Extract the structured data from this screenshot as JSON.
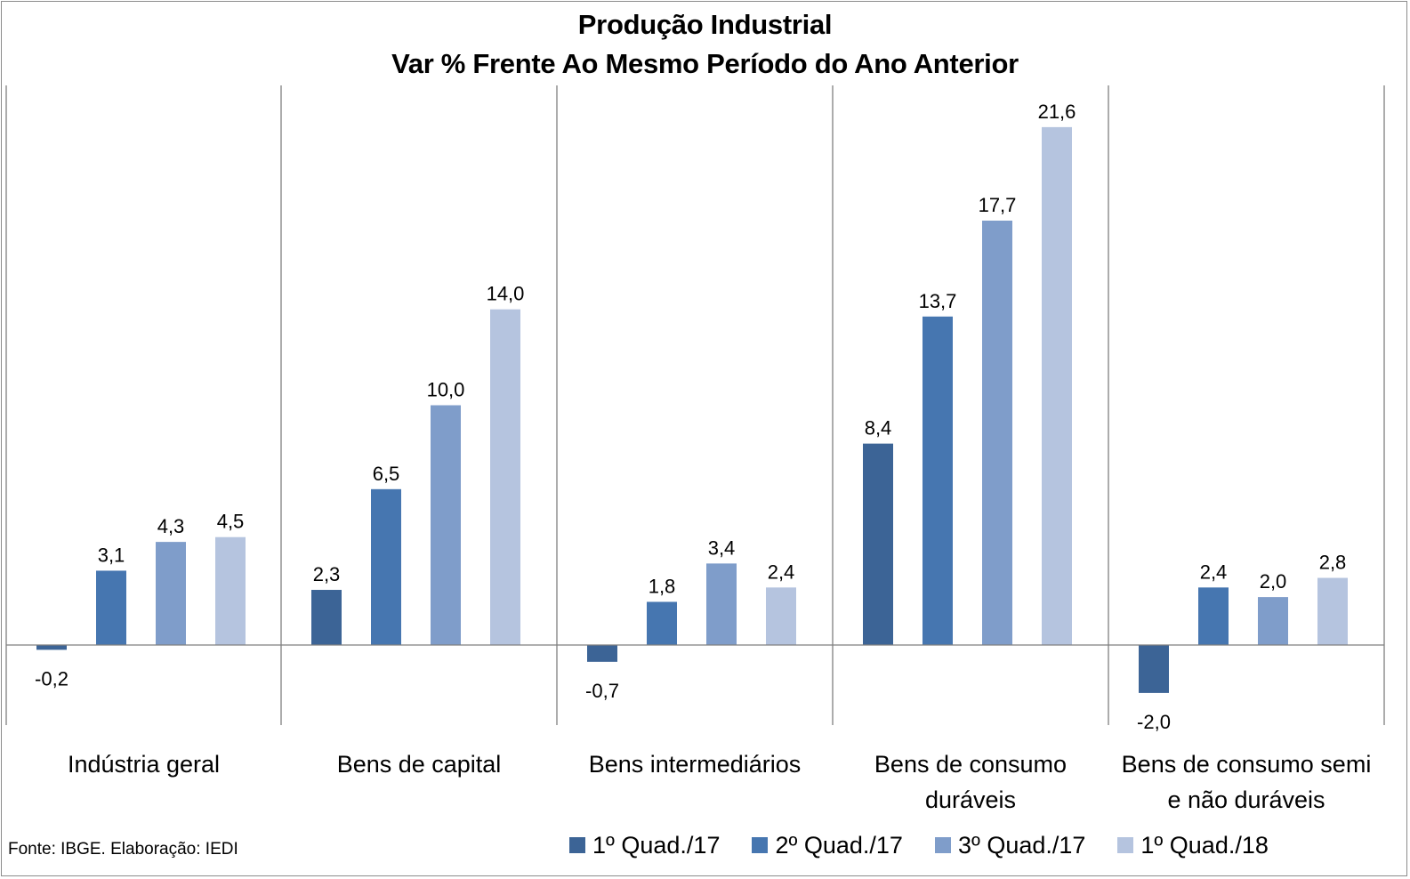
{
  "chart_data": {
    "type": "bar",
    "title": "Produção Industrial",
    "subtitle": "Var % Frente Ao Mesmo Período do Ano Anterior",
    "categories": [
      [
        "Indústria geral"
      ],
      [
        "Bens de capital"
      ],
      [
        "Bens intermediários"
      ],
      [
        "Bens de consumo",
        "duráveis"
      ],
      [
        "Bens de consumo semi",
        "e não duráveis"
      ]
    ],
    "series": [
      {
        "name": "1º Quad./17",
        "color": "#3c6496",
        "values": [
          -0.2,
          2.3,
          -0.7,
          8.4,
          -2.0
        ],
        "labels": [
          "-0,2",
          "2,3",
          "-0,7",
          "8,4",
          "-2,0"
        ]
      },
      {
        "name": "2º Quad./17",
        "color": "#4676b0",
        "values": [
          3.1,
          6.5,
          1.8,
          13.7,
          2.4
        ],
        "labels": [
          "3,1",
          "6,5",
          "1,8",
          "13,7",
          "2,4"
        ]
      },
      {
        "name": "3º Quad./17",
        "color": "#7f9dca",
        "values": [
          4.3,
          10.0,
          3.4,
          17.7,
          2.0
        ],
        "labels": [
          "4,3",
          "10,0",
          "3,4",
          "17,7",
          "2,0"
        ]
      },
      {
        "name": "1º Quad./18",
        "color": "#b5c4df",
        "values": [
          4.5,
          14.0,
          2.4,
          21.6,
          2.8
        ],
        "labels": [
          "4,5",
          "14,0",
          "2,4",
          "21,6",
          "2,8"
        ]
      }
    ],
    "xlabel": "",
    "ylabel": "",
    "ylim": [
      -3.4,
      24.0
    ],
    "grid": false,
    "legend": "bottom",
    "data_labels": true
  },
  "source": "Fonte: IBGE. Elaboração: IEDI"
}
